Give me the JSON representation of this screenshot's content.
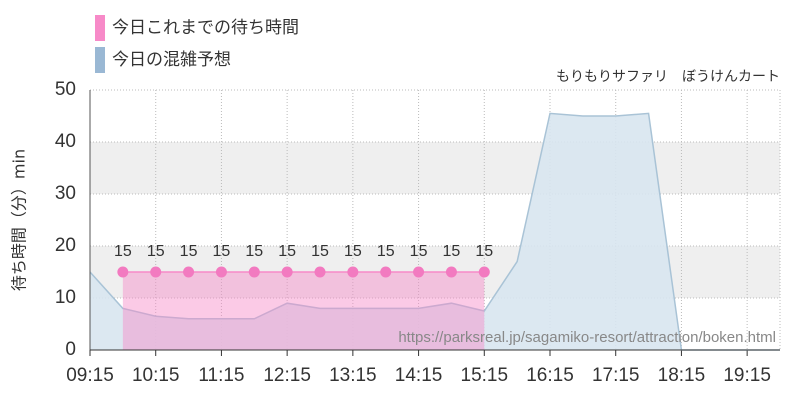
{
  "chart_data": {
    "type": "area",
    "subtitle": "もりもりサファリ　ぼうけんカート",
    "y_label": "待ち時間（分）min",
    "watermark": "https://parksreal.jp/sagamiko-resort/attraction/boken.html",
    "xlim": [
      "09:15",
      "19:45"
    ],
    "xticks": [
      "09:15",
      "10:15",
      "11:15",
      "12:15",
      "13:15",
      "14:15",
      "15:15",
      "16:15",
      "17:15",
      "18:15",
      "19:15"
    ],
    "ylim": [
      0,
      50
    ],
    "yticks": [
      0,
      10,
      20,
      30,
      40,
      50
    ],
    "grid": true,
    "series": [
      {
        "name": "今日これまでの待ち時間",
        "color": "#f78ac8",
        "x": [
          "09:45",
          "10:15",
          "10:45",
          "11:15",
          "11:45",
          "12:15",
          "12:45",
          "13:15",
          "13:45",
          "14:15",
          "14:45",
          "15:15"
        ],
        "values": [
          15,
          15,
          15,
          15,
          15,
          15,
          15,
          15,
          15,
          15,
          15,
          15
        ]
      },
      {
        "name": "今日の混雑予想",
        "color": "#9ab8d4",
        "x": [
          "09:15",
          "09:45",
          "10:15",
          "10:45",
          "11:15",
          "11:45",
          "12:15",
          "12:45",
          "13:15",
          "13:45",
          "14:15",
          "14:45",
          "15:15",
          "15:45",
          "16:15",
          "16:45",
          "17:15",
          "17:45",
          "18:15",
          "18:45",
          "19:15",
          "19:45"
        ],
        "values": [
          15,
          8,
          6.5,
          6,
          6,
          6,
          9,
          8,
          8,
          8,
          8,
          9,
          7.5,
          17,
          45.5,
          45,
          45,
          45.5,
          0,
          0,
          0,
          0
        ]
      }
    ]
  }
}
